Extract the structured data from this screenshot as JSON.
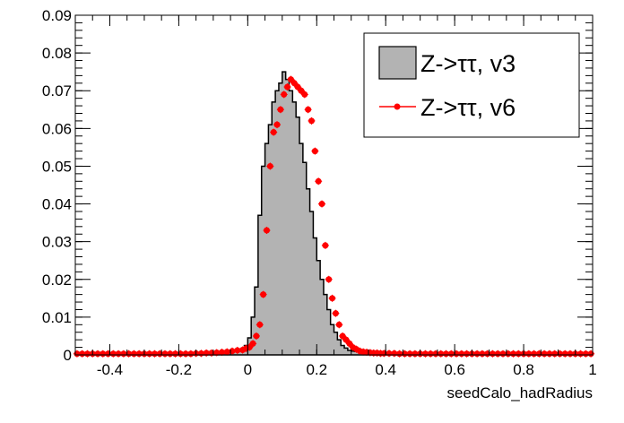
{
  "chart_data": {
    "type": "histogram",
    "xlabel": "seedCalo_hadRadius",
    "ylabel": "",
    "xlim": [
      -0.5,
      1.0
    ],
    "ylim": [
      0,
      0.09
    ],
    "x_ticks": [
      -0.4,
      -0.2,
      0,
      0.2,
      0.4,
      0.6,
      0.8,
      1
    ],
    "x_tick_labels": [
      "-0.4",
      "-0.2",
      "0",
      "0.2",
      "0.4",
      "0.6",
      "0.8",
      "1"
    ],
    "y_ticks": [
      0,
      0.01,
      0.02,
      0.03,
      0.04,
      0.05,
      0.06,
      0.07,
      0.08,
      0.09
    ],
    "y_tick_labels": [
      "0",
      "0.01",
      "0.02",
      "0.03",
      "0.04",
      "0.05",
      "0.06",
      "0.07",
      "0.08",
      "0.09"
    ],
    "bin_edges_start": -0.5,
    "bin_width": 0.01,
    "legend_position": "top-right",
    "series": [
      {
        "name": "Z->ττ, v3",
        "style": "filled-histogram",
        "fill_color": "#b3b3b3",
        "line_color": "#000000",
        "values": [
          0.0003,
          0.0003,
          0.0003,
          0.0003,
          0.0003,
          0.0003,
          0.0003,
          0.0003,
          0.0003,
          0.0003,
          0.0003,
          0.0003,
          0.0003,
          0.0003,
          0.0003,
          0.0003,
          0.0003,
          0.0003,
          0.0003,
          0.0003,
          0.0003,
          0.0003,
          0.0003,
          0.0003,
          0.0003,
          0.0003,
          0.0003,
          0.0003,
          0.0003,
          0.0003,
          0.0003,
          0.0003,
          0.0003,
          0.0003,
          0.0003,
          0.0003,
          0.0003,
          0.0003,
          0.0004,
          0.0004,
          0.0004,
          0.0005,
          0.0006,
          0.0006,
          0.0007,
          0.0008,
          0.0009,
          0.001,
          0.0016,
          0.0025,
          0.0045,
          0.01,
          0.018,
          0.037,
          0.05,
          0.056,
          0.061,
          0.067,
          0.07,
          0.072,
          0.075,
          0.073,
          0.07,
          0.067,
          0.063,
          0.056,
          0.051,
          0.044,
          0.038,
          0.031,
          0.025,
          0.02,
          0.016,
          0.012,
          0.008,
          0.006,
          0.004,
          0.0025,
          0.0018,
          0.0012,
          0.001,
          0.0009,
          0.0008,
          0.0007,
          0.0006,
          0.0005,
          0.0005,
          0.0004,
          0.0004,
          0.0004,
          0.0004,
          0.0003,
          0.0003,
          0.0003,
          0.0003,
          0.0003,
          0.0003,
          0.0003,
          0.0003,
          0.0003,
          0.0003,
          0.0003,
          0.0003,
          0.0003,
          0.0003,
          0.0003,
          0.0003,
          0.0003,
          0.0003,
          0.0003,
          0.0003,
          0.0003,
          0.0003,
          0.0003,
          0.0003,
          0.0003,
          0.0003,
          0.0003,
          0.0003,
          0.0003,
          0.0003,
          0.0003,
          0.0003,
          0.0003,
          0.0003,
          0.0003,
          0.0003,
          0.0003,
          0.0003,
          0.0003,
          0.0003,
          0.0003,
          0.0003,
          0.0003,
          0.0003,
          0.0003,
          0.0003,
          0.0003,
          0.0003,
          0.0003,
          0.0003,
          0.0003,
          0.0003,
          0.0003,
          0.0003,
          0.0003,
          0.0003,
          0.0003,
          0.0003,
          0.0003
        ]
      },
      {
        "name": "Z->ττ, v6",
        "style": "markers-with-errors",
        "color": "#ff0000",
        "x": [
          -0.495,
          -0.48,
          -0.465,
          -0.45,
          -0.435,
          -0.42,
          -0.405,
          -0.39,
          -0.375,
          -0.36,
          -0.345,
          -0.33,
          -0.315,
          -0.3,
          -0.285,
          -0.27,
          -0.255,
          -0.24,
          -0.225,
          -0.21,
          -0.195,
          -0.18,
          -0.165,
          -0.15,
          -0.135,
          -0.12,
          -0.105,
          -0.09,
          -0.075,
          -0.06,
          -0.045,
          -0.03,
          -0.015,
          -0.005,
          0.005,
          0.015,
          0.025,
          0.035,
          0.045,
          0.055,
          0.065,
          0.075,
          0.085,
          0.095,
          0.105,
          0.115,
          0.125,
          0.135,
          0.145,
          0.155,
          0.165,
          0.175,
          0.185,
          0.195,
          0.205,
          0.215,
          0.225,
          0.235,
          0.245,
          0.255,
          0.265,
          0.275,
          0.285,
          0.295,
          0.305,
          0.315,
          0.325,
          0.335,
          0.345,
          0.355,
          0.365,
          0.375,
          0.385,
          0.395,
          0.41,
          0.425,
          0.44,
          0.455,
          0.47,
          0.485,
          0.5,
          0.515,
          0.53,
          0.545,
          0.56,
          0.575,
          0.59,
          0.605,
          0.62,
          0.635,
          0.65,
          0.665,
          0.68,
          0.695,
          0.71,
          0.725,
          0.74,
          0.755,
          0.77,
          0.785,
          0.8,
          0.815,
          0.83,
          0.845,
          0.86,
          0.875,
          0.89,
          0.905,
          0.92,
          0.935,
          0.95,
          0.965,
          0.98,
          0.995
        ],
        "values": [
          0.0003,
          0.0003,
          0.0003,
          0.0003,
          0.0003,
          0.0003,
          0.0003,
          0.0003,
          0.0003,
          0.0003,
          0.0003,
          0.0003,
          0.0003,
          0.0003,
          0.0003,
          0.0003,
          0.0003,
          0.0003,
          0.0003,
          0.0003,
          0.0003,
          0.0003,
          0.0003,
          0.0004,
          0.0004,
          0.0005,
          0.0005,
          0.0006,
          0.0007,
          0.0008,
          0.001,
          0.0012,
          0.0013,
          0.0017,
          0.002,
          0.003,
          0.005,
          0.008,
          0.016,
          0.033,
          0.05,
          0.059,
          0.061,
          0.065,
          0.069,
          0.071,
          0.073,
          0.072,
          0.071,
          0.07,
          0.069,
          0.065,
          0.062,
          0.054,
          0.046,
          0.04,
          0.029,
          0.02,
          0.015,
          0.011,
          0.008,
          0.005,
          0.004,
          0.003,
          0.002,
          0.0015,
          0.001,
          0.0008,
          0.0007,
          0.0006,
          0.0005,
          0.0005,
          0.0004,
          0.0004,
          0.0004,
          0.0004,
          0.0003,
          0.0003,
          0.0003,
          0.0003,
          0.0003,
          0.0003,
          0.0003,
          0.0003,
          0.0003,
          0.0003,
          0.0003,
          0.0003,
          0.0003,
          0.0003,
          0.0003,
          0.0003,
          0.0003,
          0.0003,
          0.0003,
          0.0003,
          0.0003,
          0.0003,
          0.0003,
          0.0003,
          0.0003,
          0.0003,
          0.0003,
          0.0003,
          0.0003,
          0.0003,
          0.0003,
          0.0003,
          0.0003,
          0.0003,
          0.0003,
          0.0003,
          0.0003,
          0.0003
        ]
      }
    ]
  },
  "legend": {
    "entries": [
      "Z->ττ, v3",
      "Z->ττ, v6"
    ]
  }
}
